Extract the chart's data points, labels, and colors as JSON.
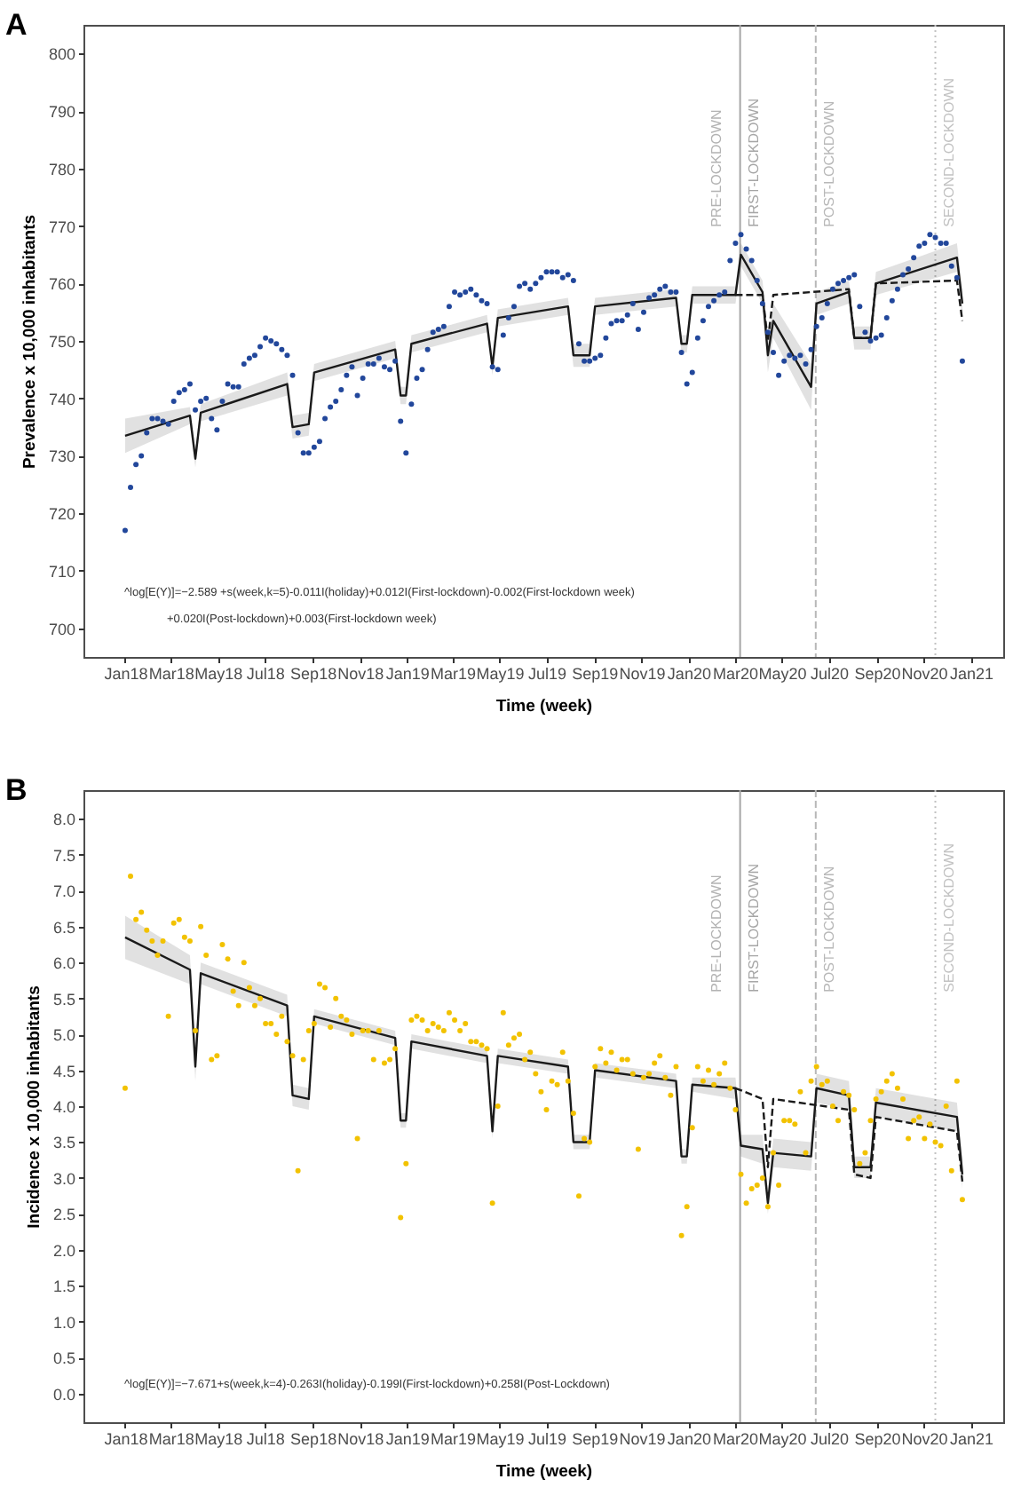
{
  "chart_data": [
    {
      "type": "scatter",
      "title": "A",
      "xlabel": "Time (week)",
      "ylabel": "Prevalence x 10,000 inhabitants",
      "x": [
        "2018-01-01",
        "2018-01-08",
        "2018-01-15",
        "2018-01-22",
        "2018-01-29",
        "2018-02-05",
        "2018-02-12",
        "2018-02-19",
        "2018-02-26",
        "2018-03-05",
        "2018-03-12",
        "2018-03-19",
        "2018-03-26",
        "2018-04-02",
        "2018-04-09",
        "2018-04-16",
        "2018-04-23",
        "2018-04-30",
        "2018-05-07",
        "2018-05-14",
        "2018-05-21",
        "2018-05-28",
        "2018-06-04",
        "2018-06-11",
        "2018-06-18",
        "2018-06-25",
        "2018-07-02",
        "2018-07-09",
        "2018-07-16",
        "2018-07-23",
        "2018-07-30",
        "2018-08-06",
        "2018-08-13",
        "2018-08-20",
        "2018-08-27",
        "2018-09-03",
        "2018-09-10",
        "2018-09-17",
        "2018-09-24",
        "2018-10-01",
        "2018-10-08",
        "2018-10-15",
        "2018-10-22",
        "2018-10-29",
        "2018-11-05",
        "2018-11-12",
        "2018-11-19",
        "2018-11-26",
        "2018-12-03",
        "2018-12-10",
        "2018-12-17",
        "2018-12-24",
        "2018-12-31",
        "2019-01-07",
        "2019-01-14",
        "2019-01-21",
        "2019-01-28",
        "2019-02-04",
        "2019-02-11",
        "2019-02-18",
        "2019-02-25",
        "2019-03-04",
        "2019-03-11",
        "2019-03-18",
        "2019-03-25",
        "2019-04-01",
        "2019-04-08",
        "2019-04-15",
        "2019-04-22",
        "2019-04-29",
        "2019-05-06",
        "2019-05-13",
        "2019-05-20",
        "2019-05-27",
        "2019-06-03",
        "2019-06-10",
        "2019-06-17",
        "2019-06-24",
        "2019-07-01",
        "2019-07-08",
        "2019-07-15",
        "2019-07-22",
        "2019-07-29",
        "2019-08-05",
        "2019-08-12",
        "2019-08-19",
        "2019-08-26",
        "2019-09-02",
        "2019-09-09",
        "2019-09-16",
        "2019-09-23",
        "2019-09-30",
        "2019-10-07",
        "2019-10-14",
        "2019-10-21",
        "2019-10-28",
        "2019-11-04",
        "2019-11-11",
        "2019-11-18",
        "2019-11-25",
        "2019-12-02",
        "2019-12-09",
        "2019-12-16",
        "2019-12-23",
        "2019-12-30",
        "2020-01-06",
        "2020-01-13",
        "2020-01-20",
        "2020-01-27",
        "2020-02-03",
        "2020-02-10",
        "2020-02-17",
        "2020-02-24",
        "2020-03-02",
        "2020-03-09",
        "2020-03-16",
        "2020-03-23",
        "2020-03-30",
        "2020-04-06",
        "2020-04-13",
        "2020-04-20",
        "2020-04-27",
        "2020-05-04",
        "2020-05-11",
        "2020-05-18",
        "2020-05-25",
        "2020-06-01",
        "2020-06-08",
        "2020-06-15",
        "2020-06-22",
        "2020-06-29",
        "2020-07-06",
        "2020-07-13",
        "2020-07-20",
        "2020-07-27",
        "2020-08-03",
        "2020-08-10",
        "2020-08-17",
        "2020-08-24",
        "2020-08-31",
        "2020-09-07",
        "2020-09-14",
        "2020-09-21",
        "2020-09-28",
        "2020-10-05",
        "2020-10-12",
        "2020-10-19",
        "2020-10-26",
        "2020-11-02",
        "2020-11-09",
        "2020-11-16",
        "2020-11-23",
        "2020-11-30",
        "2020-12-07",
        "2020-12-14",
        "2020-12-21"
      ],
      "xlim": [
        "2017-11-08",
        "2021-02-12"
      ],
      "xticks": [
        {
          "value": "2018-01-01",
          "label": "Jan18"
        },
        {
          "value": "2018-03-01",
          "label": "Mar18"
        },
        {
          "value": "2018-05-01",
          "label": "May18"
        },
        {
          "value": "2018-07-01",
          "label": "Jul18"
        },
        {
          "value": "2018-09-01",
          "label": "Sep18"
        },
        {
          "value": "2018-11-01",
          "label": "Nov18"
        },
        {
          "value": "2019-01-01",
          "label": "Jan19"
        },
        {
          "value": "2019-03-01",
          "label": "Mar19"
        },
        {
          "value": "2019-05-01",
          "label": "May19"
        },
        {
          "value": "2019-07-01",
          "label": "Jul19"
        },
        {
          "value": "2019-09-01",
          "label": "Sep19"
        },
        {
          "value": "2019-11-01",
          "label": "Nov19"
        },
        {
          "value": "2020-01-01",
          "label": "Jan20"
        },
        {
          "value": "2020-03-01",
          "label": "Mar20"
        },
        {
          "value": "2020-05-01",
          "label": "May20"
        },
        {
          "value": "2020-07-01",
          "label": "Jul20"
        },
        {
          "value": "2020-09-01",
          "label": "Sep20"
        },
        {
          "value": "2020-11-01",
          "label": "Nov20"
        },
        {
          "value": "2021-01-01",
          "label": "Jan21"
        }
      ],
      "ylim": [
        695,
        805
      ],
      "yticks": [
        700,
        710,
        720,
        730,
        740,
        750,
        760,
        770,
        780,
        790,
        800
      ],
      "series": [
        {
          "marker": "circle",
          "color": "#22479b",
          "values": [
            717,
            724.5,
            728.5,
            730,
            734,
            736.5,
            736.5,
            736,
            735.5,
            739.5,
            741,
            741.5,
            742.5,
            738,
            739.5,
            740,
            736.5,
            734.5,
            739.5,
            742.5,
            742,
            742,
            746,
            747,
            747.5,
            749,
            750.5,
            750,
            749.5,
            748.5,
            747.5,
            744,
            734,
            730.5,
            730.5,
            731.5,
            732.5,
            736.5,
            738.5,
            739.5,
            741.5,
            744,
            745.5,
            740.5,
            743.5,
            746,
            746,
            747,
            745.5,
            745,
            746.5,
            736,
            730.5,
            739,
            743.5,
            745,
            748.5,
            751.5,
            752,
            752.5,
            756,
            758.5,
            758,
            758.5,
            759,
            758,
            757,
            756.5,
            745.5,
            745,
            751,
            754,
            756,
            759.5,
            760,
            759,
            760,
            761,
            762,
            762,
            762,
            761,
            761.5,
            760.5,
            749.5,
            746.5,
            746.5,
            747,
            747.5,
            750.5,
            753,
            753.5,
            753.5,
            754.5,
            756.5,
            752,
            755,
            757.5,
            758,
            759,
            759.5,
            758.5,
            758.5,
            748,
            742.5,
            744.5,
            750.5,
            753.5,
            756,
            757,
            758,
            758.5,
            764,
            767,
            768.5,
            766,
            764,
            760.5,
            756.5,
            751.5,
            748,
            744,
            746.5,
            747.5,
            747,
            747.5,
            746,
            748.5,
            752.5,
            754,
            756.5,
            759,
            760,
            760.5,
            761,
            761.5,
            756,
            751.5,
            750,
            750.5,
            751,
            754,
            757,
            759,
            761.5,
            762.5,
            764.5,
            766.5,
            767,
            768.5,
            768,
            767,
            767,
            763,
            761,
            746.5
          ]
        },
        {
          "type": "line",
          "line_style": "solid",
          "color": "#1a1a1a",
          "x": [
            "2018-01-01",
            "2018-03-26",
            "2018-04-02",
            "2018-04-09",
            "2018-07-30",
            "2018-08-06",
            "2018-08-27",
            "2018-09-03",
            "2018-12-17",
            "2018-12-24",
            "2018-12-31",
            "2019-01-07",
            "2019-04-15",
            "2019-04-22",
            "2019-04-29",
            "2019-07-29",
            "2019-08-05",
            "2019-08-26",
            "2019-09-02",
            "2019-12-16",
            "2019-12-23",
            "2019-12-30",
            "2020-01-06",
            "2020-03-02",
            "2020-03-09",
            "2020-04-06",
            "2020-04-13",
            "2020-04-20",
            "2020-06-08",
            "2020-06-15",
            "2020-07-27",
            "2020-08-03",
            "2020-08-24",
            "2020-08-31",
            "2020-12-14",
            "2020-12-21"
          ],
          "values": [
            733.5,
            737,
            729.5,
            737.5,
            742.5,
            735,
            735.5,
            744.5,
            748.5,
            740.5,
            740.5,
            749.5,
            753,
            745.5,
            754,
            756,
            747.5,
            747.5,
            756,
            757.5,
            749.5,
            749.5,
            758,
            758,
            765,
            758.5,
            747.5,
            753.5,
            742,
            756.5,
            758.5,
            750.5,
            750.5,
            760,
            764.5,
            756.5
          ],
          "lower": [
            730.5,
            735.5,
            728,
            736,
            740.5,
            733,
            733.5,
            743,
            747,
            739,
            739,
            748,
            751.5,
            744,
            752.5,
            754.5,
            745.5,
            745.5,
            754.5,
            756,
            748,
            748,
            756.5,
            756.5,
            763,
            756.5,
            744.5,
            750.5,
            738,
            754.5,
            756.5,
            748.5,
            748.5,
            758,
            762,
            754
          ],
          "upper": [
            736.5,
            738.5,
            731,
            739,
            744.5,
            737,
            737.5,
            746,
            750,
            742,
            742,
            751,
            754.5,
            747,
            755.5,
            757.5,
            749.5,
            749.5,
            757.5,
            759,
            751,
            751,
            759.5,
            759.5,
            767,
            760.5,
            750.5,
            756.5,
            746,
            758.5,
            760.5,
            752.5,
            752.5,
            762,
            767,
            759
          ]
        },
        {
          "type": "line",
          "line_style": "dashed",
          "color": "#1a1a1a",
          "x": [
            "2020-03-02",
            "2020-04-06",
            "2020-04-13",
            "2020-04-20",
            "2020-07-27",
            "2020-08-03",
            "2020-08-24",
            "2020-08-31",
            "2020-12-14",
            "2020-12-21"
          ],
          "values": [
            758,
            758,
            750,
            758,
            759,
            750.5,
            750.5,
            760,
            760.5,
            753.5
          ]
        }
      ],
      "ref_lines": [
        {
          "axis": "x",
          "value": "2020-03-08",
          "label": "FIRST-LOCKDOWN",
          "color": "#a6a6a6",
          "line_style": "solid"
        },
        {
          "axis": "x",
          "value": "2020-06-14",
          "label": "POST-LOCKDOWN",
          "color": "#b8b8b8",
          "line_style": "dashed"
        },
        {
          "axis": "x",
          "value": "2020-11-16",
          "label": "SECOND-LOCKDOWN",
          "color": "#c2c2c2",
          "line_style": "dotted"
        }
      ],
      "annotations": [
        "PRE-LOCKDOWN",
        "^log[E(Y)]=−2.589 +s(week,k=5)-0.011I(holiday)+0.012I(First-lockdown)-0.002(First-lockdown week)",
        "+0.020I(Post-lockdown)+0.003(First-lockdown week)"
      ]
    },
    {
      "type": "scatter",
      "title": "B",
      "xlabel": "Time (week)",
      "ylabel": "Incidence x 10,000 inhabitants",
      "x": [
        "2018-01-01",
        "2018-01-08",
        "2018-01-15",
        "2018-01-22",
        "2018-01-29",
        "2018-02-05",
        "2018-02-12",
        "2018-02-19",
        "2018-02-26",
        "2018-03-05",
        "2018-03-12",
        "2018-03-19",
        "2018-03-26",
        "2018-04-02",
        "2018-04-09",
        "2018-04-16",
        "2018-04-23",
        "2018-04-30",
        "2018-05-07",
        "2018-05-14",
        "2018-05-21",
        "2018-05-28",
        "2018-06-04",
        "2018-06-11",
        "2018-06-18",
        "2018-06-25",
        "2018-07-02",
        "2018-07-09",
        "2018-07-16",
        "2018-07-23",
        "2018-07-30",
        "2018-08-06",
        "2018-08-13",
        "2018-08-20",
        "2018-08-27",
        "2018-09-03",
        "2018-09-10",
        "2018-09-17",
        "2018-09-24",
        "2018-10-01",
        "2018-10-08",
        "2018-10-15",
        "2018-10-22",
        "2018-10-29",
        "2018-11-05",
        "2018-11-12",
        "2018-11-19",
        "2018-11-26",
        "2018-12-03",
        "2018-12-10",
        "2018-12-17",
        "2018-12-24",
        "2018-12-31",
        "2019-01-07",
        "2019-01-14",
        "2019-01-21",
        "2019-01-28",
        "2019-02-04",
        "2019-02-11",
        "2019-02-18",
        "2019-02-25",
        "2019-03-04",
        "2019-03-11",
        "2019-03-18",
        "2019-03-25",
        "2019-04-01",
        "2019-04-08",
        "2019-04-15",
        "2019-04-22",
        "2019-04-29",
        "2019-05-06",
        "2019-05-13",
        "2019-05-20",
        "2019-05-27",
        "2019-06-03",
        "2019-06-10",
        "2019-06-17",
        "2019-06-24",
        "2019-07-01",
        "2019-07-08",
        "2019-07-15",
        "2019-07-22",
        "2019-07-29",
        "2019-08-05",
        "2019-08-12",
        "2019-08-19",
        "2019-08-26",
        "2019-09-02",
        "2019-09-09",
        "2019-09-16",
        "2019-09-23",
        "2019-09-30",
        "2019-10-07",
        "2019-10-14",
        "2019-10-21",
        "2019-10-28",
        "2019-11-04",
        "2019-11-11",
        "2019-11-18",
        "2019-11-25",
        "2019-12-02",
        "2019-12-09",
        "2019-12-16",
        "2019-12-23",
        "2019-12-30",
        "2020-01-06",
        "2020-01-13",
        "2020-01-20",
        "2020-01-27",
        "2020-02-03",
        "2020-02-10",
        "2020-02-17",
        "2020-02-24",
        "2020-03-02",
        "2020-03-09",
        "2020-03-16",
        "2020-03-23",
        "2020-03-30",
        "2020-04-06",
        "2020-04-13",
        "2020-04-20",
        "2020-04-27",
        "2020-05-04",
        "2020-05-11",
        "2020-05-18",
        "2020-05-25",
        "2020-06-01",
        "2020-06-08",
        "2020-06-15",
        "2020-06-22",
        "2020-06-29",
        "2020-07-06",
        "2020-07-13",
        "2020-07-20",
        "2020-07-27",
        "2020-08-03",
        "2020-08-10",
        "2020-08-17",
        "2020-08-24",
        "2020-08-31",
        "2020-09-07",
        "2020-09-14",
        "2020-09-21",
        "2020-09-28",
        "2020-10-05",
        "2020-10-12",
        "2020-10-19",
        "2020-10-26",
        "2020-11-02",
        "2020-11-09",
        "2020-11-16",
        "2020-11-23",
        "2020-11-30",
        "2020-12-07",
        "2020-12-14",
        "2020-12-21"
      ],
      "xlim": [
        "2017-11-08",
        "2021-02-12"
      ],
      "xticks": [
        {
          "value": "2018-01-01",
          "label": "Jan18"
        },
        {
          "value": "2018-03-01",
          "label": "Mar18"
        },
        {
          "value": "2018-05-01",
          "label": "May18"
        },
        {
          "value": "2018-07-01",
          "label": "Jul18"
        },
        {
          "value": "2018-09-01",
          "label": "Sep18"
        },
        {
          "value": "2018-11-01",
          "label": "Nov18"
        },
        {
          "value": "2019-01-01",
          "label": "Jan19"
        },
        {
          "value": "2019-03-01",
          "label": "Mar19"
        },
        {
          "value": "2019-05-01",
          "label": "May19"
        },
        {
          "value": "2019-07-01",
          "label": "Jul19"
        },
        {
          "value": "2019-09-01",
          "label": "Sep19"
        },
        {
          "value": "2019-11-01",
          "label": "Nov19"
        },
        {
          "value": "2020-01-01",
          "label": "Jan20"
        },
        {
          "value": "2020-03-01",
          "label": "Mar20"
        },
        {
          "value": "2020-05-01",
          "label": "May20"
        },
        {
          "value": "2020-07-01",
          "label": "Jul20"
        },
        {
          "value": "2020-09-01",
          "label": "Sep20"
        },
        {
          "value": "2020-11-01",
          "label": "Nov20"
        },
        {
          "value": "2021-01-01",
          "label": "Jan21"
        }
      ],
      "ylim": [
        -0.4,
        8.4
      ],
      "yticks": [
        {
          "value": 0,
          "label": "0.0"
        },
        0.5,
        {
          "value": 1,
          "label": "1.0"
        },
        1.5,
        {
          "value": 2,
          "label": "2.0"
        },
        2.5,
        {
          "value": 3,
          "label": "3.0"
        },
        3.5,
        {
          "value": 4,
          "label": "4.0"
        },
        4.5,
        {
          "value": 5,
          "label": "5.0"
        },
        5.5,
        {
          "value": 6,
          "label": "6.0"
        },
        6.5,
        {
          "value": 7,
          "label": "7.0"
        },
        7.5,
        {
          "value": 8,
          "label": "8.0"
        }
      ],
      "series": [
        {
          "marker": "circle",
          "color": "#f2c200",
          "values": [
            4.25,
            7.2,
            6.6,
            6.7,
            6.45,
            6.3,
            6.1,
            6.3,
            5.25,
            6.55,
            6.6,
            6.35,
            6.3,
            5.05,
            6.5,
            6.1,
            4.65,
            4.7,
            6.25,
            6.05,
            5.6,
            5.4,
            6.0,
            5.65,
            5.4,
            5.5,
            5.15,
            5.15,
            5.0,
            5.25,
            4.9,
            4.7,
            3.1,
            4.65,
            5.05,
            5.15,
            5.7,
            5.65,
            5.1,
            5.5,
            5.25,
            5.2,
            5.0,
            3.55,
            5.05,
            5.05,
            4.65,
            5.05,
            4.6,
            4.65,
            4.8,
            2.45,
            3.2,
            5.2,
            5.25,
            5.2,
            5.05,
            5.15,
            5.1,
            5.05,
            5.3,
            5.2,
            5.05,
            5.15,
            4.9,
            4.9,
            4.85,
            4.8,
            2.65,
            4.0,
            5.3,
            4.85,
            4.95,
            5.0,
            4.65,
            4.75,
            4.45,
            4.2,
            3.95,
            4.35,
            4.3,
            4.75,
            4.35,
            3.9,
            2.75,
            3.55,
            3.5,
            4.55,
            4.8,
            4.6,
            4.75,
            4.5,
            4.65,
            4.65,
            4.45,
            3.4,
            4.4,
            4.45,
            4.6,
            4.7,
            4.4,
            4.15,
            4.55,
            2.2,
            2.6,
            3.7,
            4.55,
            4.35,
            4.5,
            4.3,
            4.45,
            4.6,
            4.25,
            3.95,
            3.05,
            2.65,
            2.85,
            2.9,
            3.0,
            2.6,
            3.35,
            2.9,
            3.8,
            3.8,
            3.75,
            4.2,
            3.35,
            4.35,
            4.55,
            4.3,
            4.35,
            4.0,
            3.8,
            4.2,
            4.15,
            3.95,
            3.2,
            3.35,
            3.8,
            4.1,
            4.2,
            4.35,
            4.45,
            4.25,
            4.1,
            3.55,
            3.8,
            3.85,
            3.55,
            3.75,
            3.5,
            3.45,
            4.0,
            3.1,
            4.35,
            2.7
          ]
        },
        {
          "type": "line",
          "line_style": "solid",
          "color": "#1a1a1a",
          "x": [
            "2018-01-01",
            "2018-03-26",
            "2018-04-02",
            "2018-04-09",
            "2018-07-30",
            "2018-08-06",
            "2018-08-27",
            "2018-09-03",
            "2018-12-17",
            "2018-12-24",
            "2018-12-31",
            "2019-01-07",
            "2019-04-15",
            "2019-04-22",
            "2019-04-29",
            "2019-07-29",
            "2019-08-05",
            "2019-08-26",
            "2019-09-02",
            "2019-12-16",
            "2019-12-23",
            "2019-12-30",
            "2020-01-06",
            "2020-03-02",
            "2020-03-09",
            "2020-04-06",
            "2020-04-13",
            "2020-04-20",
            "2020-06-08",
            "2020-06-15",
            "2020-07-27",
            "2020-08-03",
            "2020-08-24",
            "2020-08-31",
            "2020-12-14",
            "2020-12-21"
          ],
          "values": [
            6.35,
            5.9,
            4.55,
            5.85,
            5.4,
            4.15,
            4.1,
            5.25,
            4.95,
            3.8,
            3.8,
            4.9,
            4.7,
            3.65,
            4.7,
            4.55,
            3.5,
            3.5,
            4.5,
            4.35,
            3.3,
            3.3,
            4.3,
            4.25,
            3.45,
            3.4,
            2.65,
            3.35,
            3.3,
            4.25,
            4.15,
            3.15,
            3.15,
            4.05,
            3.85,
            3.05
          ],
          "lower": [
            6.05,
            5.7,
            4.35,
            5.7,
            5.25,
            4.0,
            3.95,
            5.15,
            4.85,
            3.7,
            3.7,
            4.8,
            4.6,
            3.55,
            4.6,
            4.45,
            3.4,
            3.4,
            4.4,
            4.25,
            3.2,
            3.2,
            4.2,
            4.1,
            3.3,
            3.2,
            2.5,
            3.15,
            3.1,
            4.05,
            3.95,
            3.0,
            3.0,
            3.85,
            3.65,
            2.85
          ],
          "upper": [
            6.65,
            6.1,
            4.75,
            6.0,
            5.55,
            4.3,
            4.25,
            5.35,
            5.05,
            3.9,
            3.9,
            5.0,
            4.8,
            3.75,
            4.8,
            4.65,
            3.6,
            3.6,
            4.6,
            4.45,
            3.4,
            3.4,
            4.4,
            4.4,
            3.6,
            3.6,
            2.8,
            3.55,
            3.5,
            4.45,
            4.35,
            3.3,
            3.3,
            4.25,
            4.05,
            3.25
          ]
        },
        {
          "type": "line",
          "line_style": "dashed",
          "color": "#1a1a1a",
          "x": [
            "2020-03-02",
            "2020-04-06",
            "2020-04-13",
            "2020-04-20",
            "2020-07-27",
            "2020-08-03",
            "2020-08-24",
            "2020-08-31",
            "2020-12-14",
            "2020-12-21"
          ],
          "values": [
            4.25,
            4.1,
            3.15,
            4.1,
            3.95,
            3.05,
            3.0,
            3.85,
            3.65,
            2.95
          ]
        }
      ],
      "ref_lines": [
        {
          "axis": "x",
          "value": "2020-03-08",
          "label": "FIRST-LOCKDOWN",
          "color": "#a6a6a6",
          "line_style": "solid"
        },
        {
          "axis": "x",
          "value": "2020-06-14",
          "label": "POST-LOCKDOWN",
          "color": "#b8b8b8",
          "line_style": "dashed"
        },
        {
          "axis": "x",
          "value": "2020-11-16",
          "label": "SECOND-LOCKDOWN",
          "color": "#c2c2c2",
          "line_style": "dotted"
        }
      ],
      "annotations": [
        "PRE-LOCKDOWN",
        "^log[E(Y)]=−7.671+s(week,k=4)-0.263I(holiday)-0.199I(First-lockdown)+0.258I(Post-Lockdown)"
      ]
    }
  ]
}
